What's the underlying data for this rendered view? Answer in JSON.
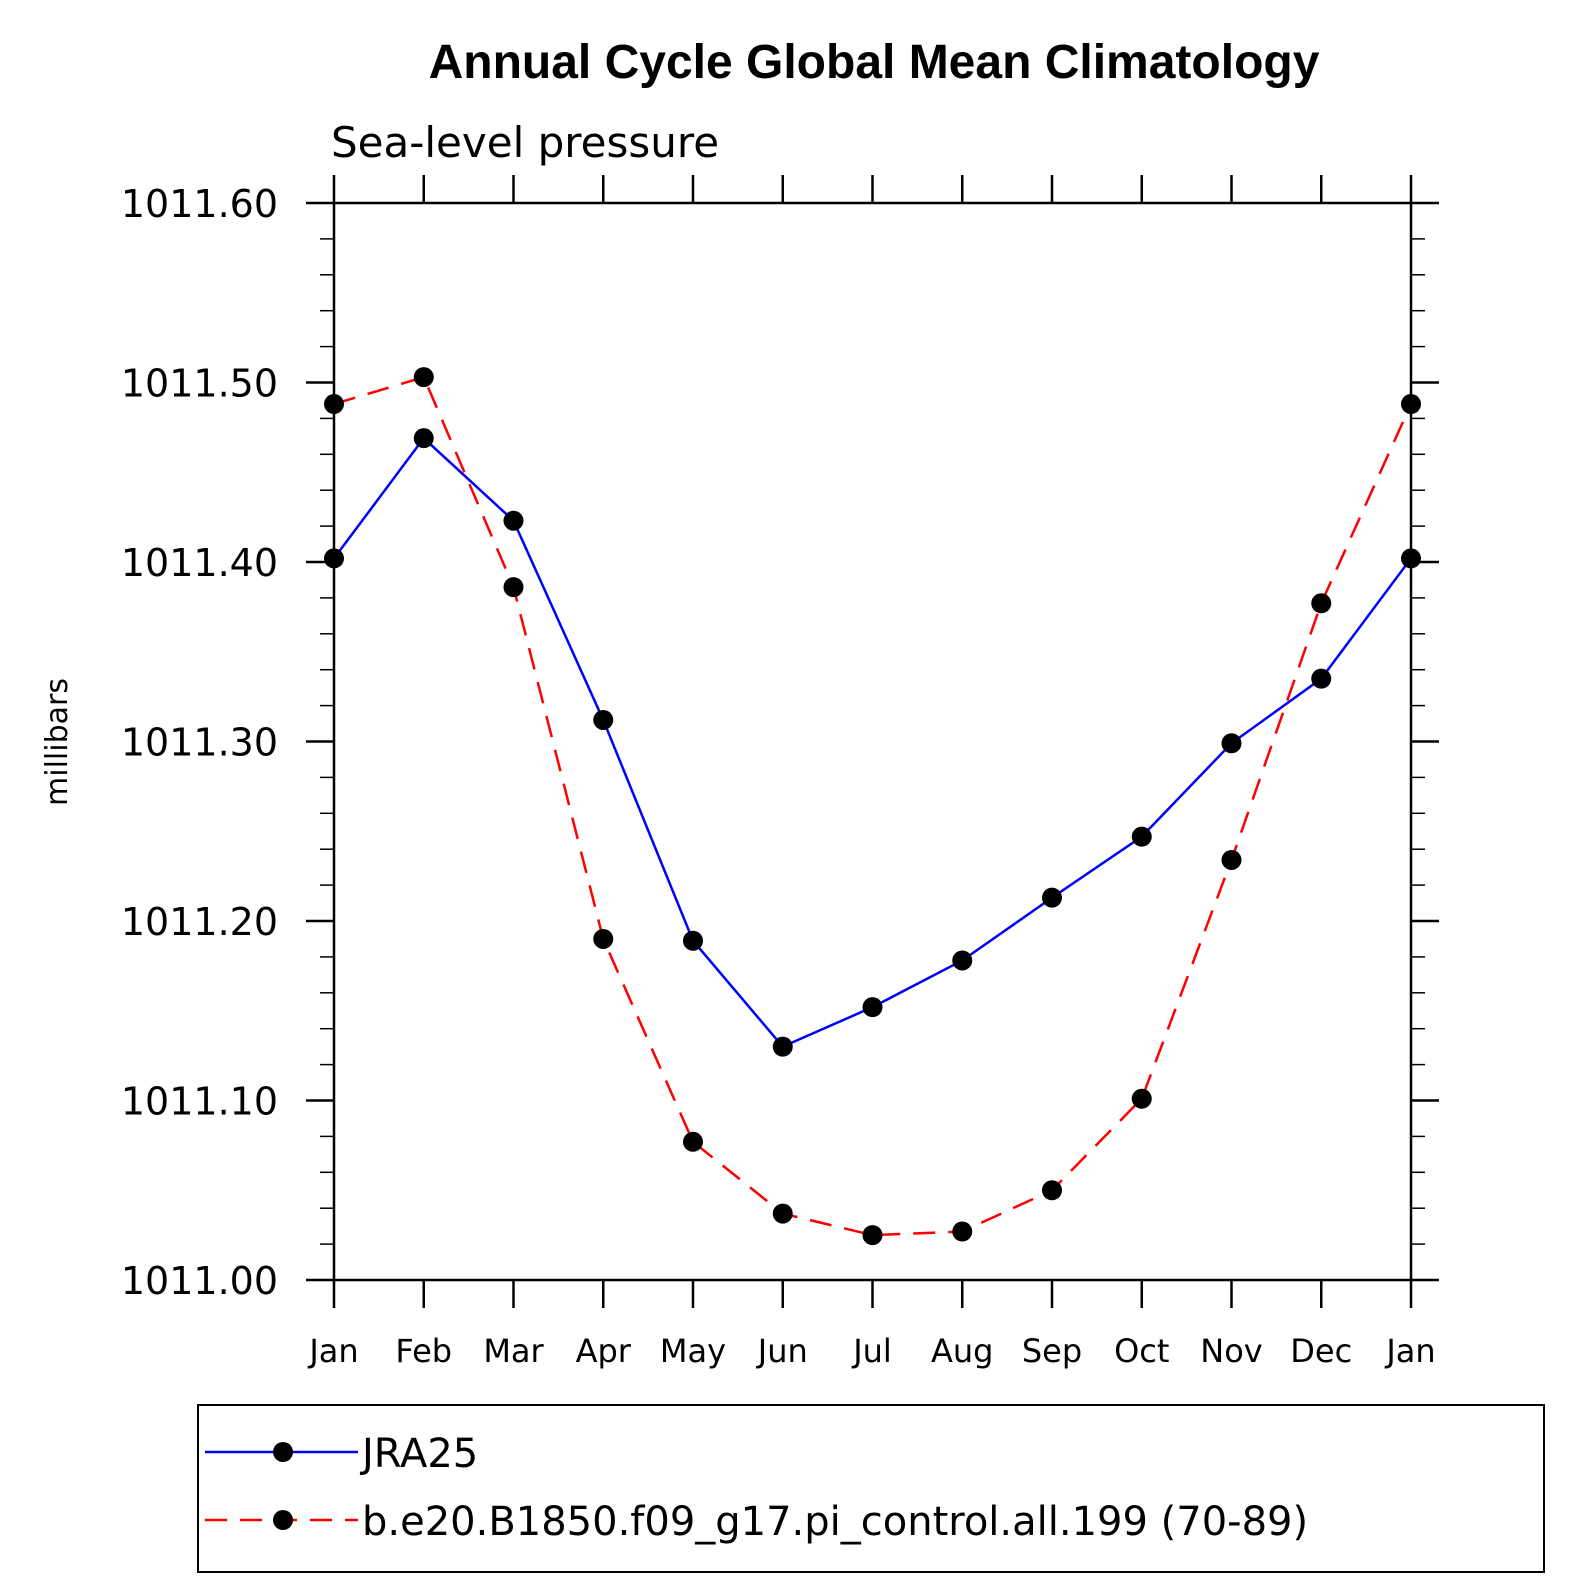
{
  "chart_data": {
    "type": "line",
    "title": "Annual Cycle Global Mean Climatology",
    "subtitle": "Sea-level pressure",
    "xlabel": "",
    "ylabel": "millibars",
    "ylim": [
      1011.0,
      1011.6
    ],
    "yticks": [
      "1011.00",
      "1011.10",
      "1011.20",
      "1011.30",
      "1011.40",
      "1011.50",
      "1011.60"
    ],
    "categories": [
      "Jan",
      "Feb",
      "Mar",
      "Apr",
      "May",
      "Jun",
      "Jul",
      "Aug",
      "Sep",
      "Oct",
      "Nov",
      "Dec",
      "Jan"
    ],
    "grid": false,
    "legend": "bottom",
    "series": [
      {
        "name": "JRA25",
        "color": "#0000ff",
        "line": "solid",
        "marker": "filled-circle",
        "values": [
          1011.402,
          1011.469,
          1011.423,
          1011.312,
          1011.189,
          1011.13,
          1011.152,
          1011.178,
          1011.213,
          1011.247,
          1011.299,
          1011.335,
          1011.402
        ]
      },
      {
        "name": "b.e20.B1850.f09_g17.pi_control.all.199 (70-89)",
        "color": "#ff0000",
        "line": "dashed",
        "marker": "filled-circle",
        "values": [
          1011.488,
          1011.503,
          1011.386,
          1011.19,
          1011.077,
          1011.037,
          1011.025,
          1011.027,
          1011.05,
          1011.101,
          1011.234,
          1011.377,
          1011.488
        ]
      }
    ]
  }
}
